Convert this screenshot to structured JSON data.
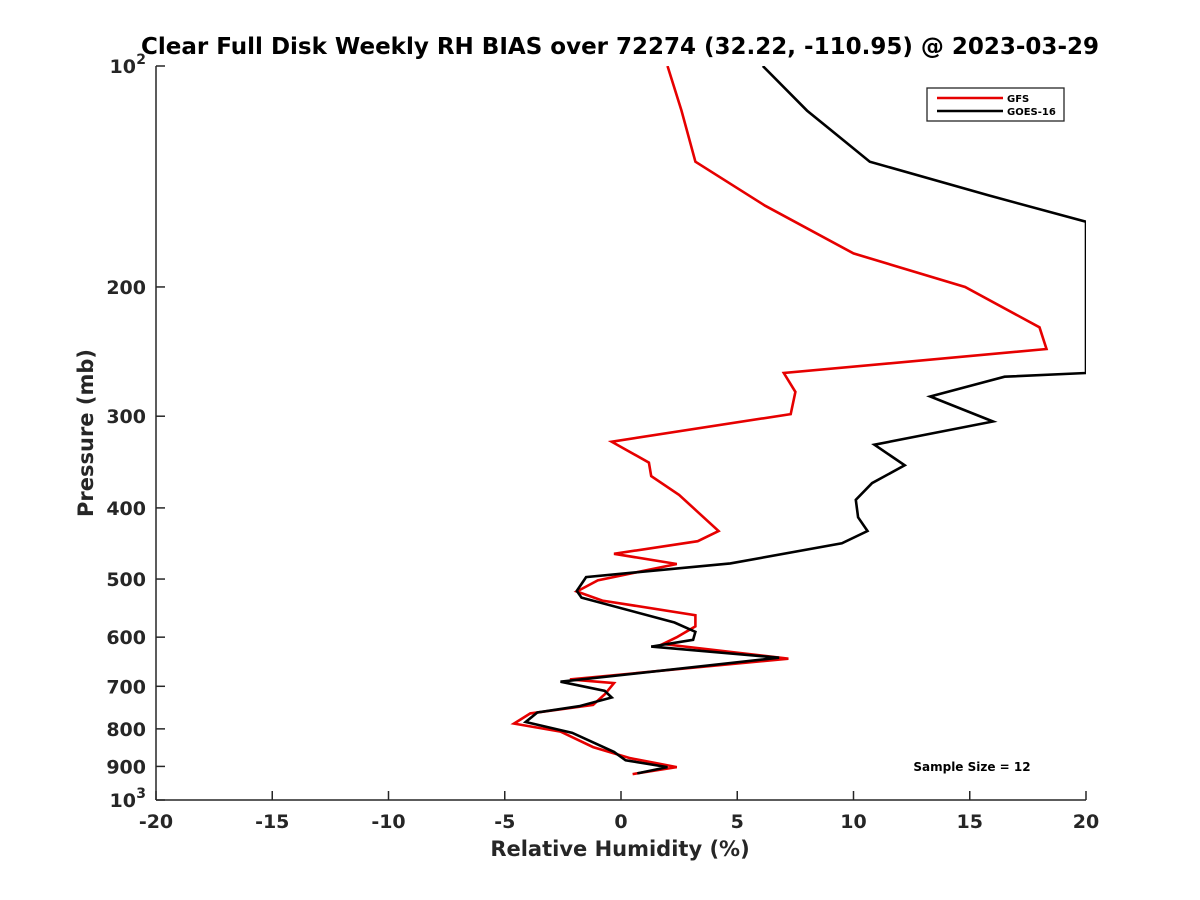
{
  "chart_data": {
    "type": "line",
    "title": "Clear Full Disk Weekly RH BIAS over 72274 (32.22, -110.95) @ 2023-03-29",
    "xlabel": "Relative Humidity (%)",
    "ylabel": "Pressure (mb)",
    "xlim": [
      -20,
      20
    ],
    "ylim": [
      100,
      1000
    ],
    "y_scale": "log",
    "y_reversed": true,
    "grid": false,
    "legend_position": "top-right",
    "x_tick_labels": [
      "-20",
      "-15",
      "-10",
      "-5",
      "0",
      "5",
      "10",
      "15",
      "20"
    ],
    "y_tick_labels": [
      {
        "value": 100,
        "base": "10",
        "exp": "2"
      },
      {
        "value": 200,
        "base": "200",
        "exp": ""
      },
      {
        "value": 300,
        "base": "300",
        "exp": ""
      },
      {
        "value": 400,
        "base": "400",
        "exp": ""
      },
      {
        "value": 500,
        "base": "500",
        "exp": ""
      },
      {
        "value": 600,
        "base": "600",
        "exp": ""
      },
      {
        "value": 700,
        "base": "700",
        "exp": ""
      },
      {
        "value": 800,
        "base": "800",
        "exp": ""
      },
      {
        "value": 900,
        "base": "900",
        "exp": ""
      },
      {
        "value": 1000,
        "base": "10",
        "exp": "3"
      }
    ],
    "series": [
      {
        "name": "GFS",
        "color": "#e60000",
        "points": [
          [
            2.0,
            100
          ],
          [
            2.6,
            115
          ],
          [
            3.2,
            135
          ],
          [
            6.2,
            155
          ],
          [
            10.0,
            180
          ],
          [
            14.8,
            200
          ],
          [
            18.0,
            227
          ],
          [
            18.3,
            243
          ],
          [
            7.0,
            262
          ],
          [
            7.5,
            278
          ],
          [
            7.3,
            298
          ],
          [
            -0.4,
            325
          ],
          [
            1.2,
            347
          ],
          [
            1.3,
            362
          ],
          [
            2.5,
            384
          ],
          [
            3.3,
            405
          ],
          [
            4.2,
            430
          ],
          [
            3.3,
            444
          ],
          [
            -0.3,
            462
          ],
          [
            2.4,
            477
          ],
          [
            -1.0,
            502
          ],
          [
            -1.9,
            520
          ],
          [
            -0.8,
            535
          ],
          [
            3.2,
            560
          ],
          [
            3.2,
            580
          ],
          [
            2.4,
            600
          ],
          [
            1.8,
            613
          ],
          [
            7.2,
            642
          ],
          [
            -2.2,
            685
          ],
          [
            -0.3,
            693
          ],
          [
            -0.7,
            718
          ],
          [
            -1.2,
            742
          ],
          [
            -3.9,
            762
          ],
          [
            -4.6,
            787
          ],
          [
            -2.6,
            807
          ],
          [
            -1.2,
            847
          ],
          [
            0.4,
            877
          ],
          [
            2.4,
            902
          ],
          [
            0.5,
            922
          ]
        ]
      },
      {
        "name": "GOES-16",
        "color": "#000000",
        "points": [
          [
            6.1,
            100
          ],
          [
            8.0,
            115
          ],
          [
            10.7,
            135
          ],
          [
            15.8,
            150
          ],
          [
            20.0,
            163
          ],
          [
            20.0,
            262
          ],
          [
            16.5,
            265
          ],
          [
            13.3,
            282
          ],
          [
            16.0,
            305
          ],
          [
            10.9,
            328
          ],
          [
            12.2,
            350
          ],
          [
            10.8,
            370
          ],
          [
            10.1,
            390
          ],
          [
            10.2,
            412
          ],
          [
            10.6,
            430
          ],
          [
            9.5,
            447
          ],
          [
            4.7,
            476
          ],
          [
            -1.5,
            497
          ],
          [
            -1.9,
            519
          ],
          [
            -1.7,
            530
          ],
          [
            2.3,
            573
          ],
          [
            3.2,
            590
          ],
          [
            3.1,
            605
          ],
          [
            1.3,
            618
          ],
          [
            6.8,
            640
          ],
          [
            -2.6,
            690
          ],
          [
            -0.7,
            710
          ],
          [
            -0.4,
            725
          ],
          [
            -1.8,
            745
          ],
          [
            -3.6,
            760
          ],
          [
            -4.1,
            783
          ],
          [
            -2.1,
            810
          ],
          [
            -0.3,
            860
          ],
          [
            0.2,
            883
          ],
          [
            2.0,
            902
          ],
          [
            0.7,
            920
          ]
        ]
      }
    ],
    "annotations": [
      "Sample Size = 12"
    ]
  }
}
